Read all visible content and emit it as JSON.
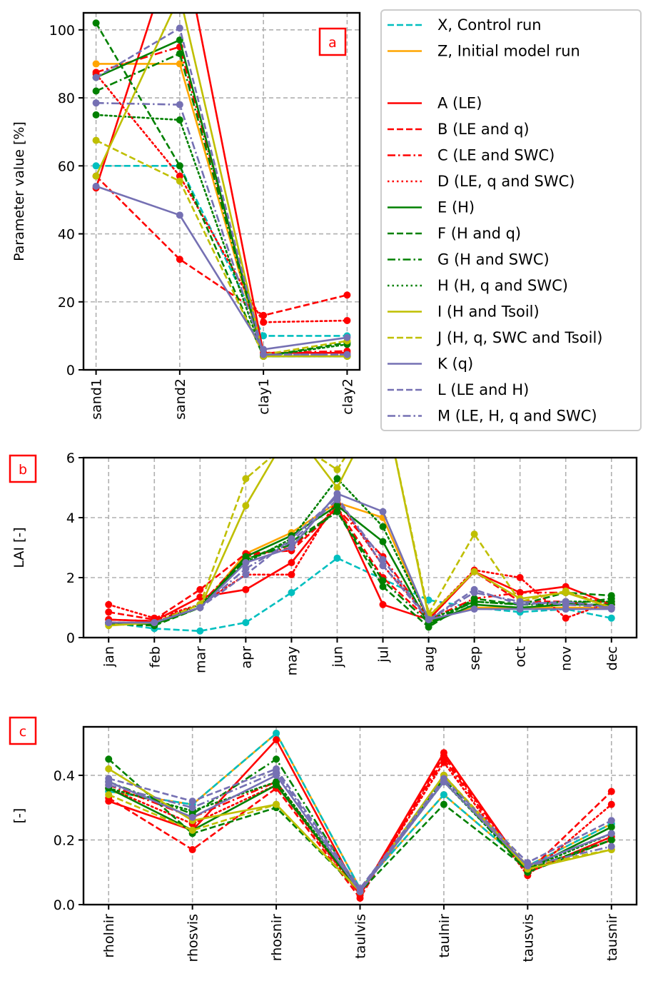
{
  "styles": {
    "X": {
      "color": "#00bfbf",
      "dash": "dashed"
    },
    "Z": {
      "color": "#ffa500",
      "dash": "solid"
    },
    "A": {
      "color": "#ff0000",
      "dash": "solid"
    },
    "B": {
      "color": "#ff0000",
      "dash": "dashed"
    },
    "C": {
      "color": "#ff0000",
      "dash": "dashdot"
    },
    "D": {
      "color": "#ff0000",
      "dash": "dotted"
    },
    "E": {
      "color": "#008000",
      "dash": "solid"
    },
    "F": {
      "color": "#008000",
      "dash": "dashed"
    },
    "G": {
      "color": "#008000",
      "dash": "dashdot"
    },
    "H": {
      "color": "#008000",
      "dash": "dotted"
    },
    "I": {
      "color": "#bfbf00",
      "dash": "solid"
    },
    "J": {
      "color": "#bfbf00",
      "dash": "dashed"
    },
    "K": {
      "color": "#7570b3",
      "dash": "solid"
    },
    "L": {
      "color": "#7570b3",
      "dash": "dashed"
    },
    "M": {
      "color": "#7570b3",
      "dash": "dashdot"
    }
  },
  "legend": {
    "placement": "right of panel a",
    "entries": [
      {
        "key": "X",
        "label": "X, Control run"
      },
      {
        "key": "Z",
        "label": "Z, Initial model run"
      },
      {
        "key": "",
        "label": ""
      },
      {
        "key": "A",
        "label": "A (LE)"
      },
      {
        "key": "B",
        "label": "B (LE and q)"
      },
      {
        "key": "C",
        "label": "C (LE and SWC)"
      },
      {
        "key": "D",
        "label": "D (LE, q and SWC)"
      },
      {
        "key": "E",
        "label": "E (H)"
      },
      {
        "key": "F",
        "label": "F (H and q)"
      },
      {
        "key": "G",
        "label": "G (H and SWC)"
      },
      {
        "key": "H",
        "label": "H (H, q and SWC)"
      },
      {
        "key": "I",
        "label": "I (H and Tsoil)"
      },
      {
        "key": "J",
        "label": "J (H, q, SWC and Tsoil)"
      },
      {
        "key": "K",
        "label": "K (q)"
      },
      {
        "key": "L",
        "label": "L (LE and H)"
      },
      {
        "key": "M",
        "label": "M (LE, H, q and SWC)"
      }
    ]
  },
  "chart_data": [
    {
      "panel_label": "a",
      "type": "line",
      "ylabel": "Parameter value [%]",
      "ylim": [
        0,
        105
      ],
      "yticks": [
        0,
        20,
        40,
        60,
        80,
        100
      ],
      "grid": true,
      "categories": [
        "sand1",
        "sand2",
        "clay1",
        "clay2"
      ],
      "series": [
        {
          "key": "X",
          "values": [
            60,
            60,
            10,
            10
          ]
        },
        {
          "key": "Z",
          "values": [
            90,
            90,
            4,
            4
          ]
        },
        {
          "key": "A",
          "values": [
            53.5,
            130,
            5,
            5
          ]
        },
        {
          "key": "B",
          "values": [
            57,
            32.5,
            16,
            22
          ]
        },
        {
          "key": "C",
          "values": [
            87.5,
            95,
            5,
            5.5
          ]
        },
        {
          "key": "D",
          "values": [
            87,
            57,
            14,
            14.5
          ]
        },
        {
          "key": "E",
          "values": [
            86,
            97,
            4,
            4
          ]
        },
        {
          "key": "F",
          "values": [
            102,
            60,
            4,
            8
          ]
        },
        {
          "key": "G",
          "values": [
            82,
            93,
            4,
            4
          ]
        },
        {
          "key": "H",
          "values": [
            75,
            73.5,
            4,
            7.5
          ]
        },
        {
          "key": "I",
          "values": [
            57,
            110,
            4,
            4
          ]
        },
        {
          "key": "J",
          "values": [
            67.5,
            55.5,
            4.5,
            8.5
          ]
        },
        {
          "key": "K",
          "values": [
            54,
            45.5,
            6,
            9.5
          ]
        },
        {
          "key": "L",
          "values": [
            86,
            100.5,
            4.5,
            4.5
          ]
        },
        {
          "key": "M",
          "values": [
            78.5,
            78,
            4.5,
            4.5
          ]
        }
      ]
    },
    {
      "panel_label": "b",
      "type": "line",
      "ylabel": "LAI [-]",
      "ylim": [
        0,
        6
      ],
      "yticks": [
        0,
        2,
        4,
        6
      ],
      "grid": true,
      "categories": [
        "jan",
        "feb",
        "mar",
        "apr",
        "may",
        "jun",
        "jul",
        "aug",
        "sep",
        "oct",
        "nov",
        "dec"
      ],
      "series": [
        {
          "key": "X",
          "values": [
            0.5,
            0.3,
            0.22,
            0.5,
            1.5,
            2.65,
            1.95,
            1.25,
            1.0,
            0.85,
            0.95,
            0.65
          ]
        },
        {
          "key": "Z",
          "values": [
            0.45,
            0.5,
            1.0,
            2.8,
            3.5,
            4.5,
            4.0,
            0.55,
            1.0,
            1.0,
            1.0,
            1.0
          ]
        },
        {
          "key": "A",
          "values": [
            0.6,
            0.55,
            1.35,
            1.6,
            2.5,
            4.4,
            1.1,
            0.6,
            2.2,
            1.5,
            1.7,
            1.1
          ]
        },
        {
          "key": "B",
          "values": [
            0.85,
            0.6,
            1.6,
            2.8,
            2.9,
            4.3,
            2.0,
            0.6,
            2.2,
            1.2,
            1.2,
            1.0
          ]
        },
        {
          "key": "C",
          "values": [
            0.6,
            0.55,
            1.1,
            2.7,
            3.0,
            4.3,
            2.7,
            0.6,
            1.3,
            1.5,
            1.5,
            1.1
          ]
        },
        {
          "key": "D",
          "values": [
            1.1,
            0.65,
            1.1,
            2.1,
            2.1,
            4.6,
            2.4,
            0.7,
            2.25,
            2.0,
            0.65,
            1.2
          ]
        },
        {
          "key": "E",
          "values": [
            0.5,
            0.45,
            1.0,
            2.7,
            3.4,
            4.4,
            3.2,
            0.45,
            1.1,
            1.0,
            1.1,
            1.1
          ]
        },
        {
          "key": "F",
          "values": [
            0.45,
            0.4,
            1.0,
            2.6,
            3.2,
            4.2,
            1.7,
            0.35,
            1.3,
            1.1,
            1.5,
            1.4
          ]
        },
        {
          "key": "G",
          "values": [
            0.5,
            0.45,
            1.0,
            2.6,
            3.1,
            4.2,
            1.9,
            0.5,
            1.2,
            1.1,
            1.1,
            1.3
          ]
        },
        {
          "key": "H",
          "values": [
            0.5,
            0.5,
            1.1,
            2.5,
            3.3,
            5.3,
            3.7,
            0.6,
            1.2,
            1.1,
            1.2,
            1.2
          ]
        },
        {
          "key": "I",
          "values": [
            0.4,
            0.5,
            1.0,
            4.4,
            7.0,
            5.0,
            8.0,
            0.7,
            2.2,
            1.3,
            1.5,
            1.0
          ]
        },
        {
          "key": "J",
          "values": [
            0.5,
            0.5,
            1.1,
            5.3,
            6.6,
            5.6,
            8.0,
            0.8,
            3.45,
            1.2,
            1.55,
            1.0
          ]
        },
        {
          "key": "K",
          "values": [
            0.5,
            0.5,
            1.0,
            2.5,
            3.0,
            4.8,
            4.2,
            0.6,
            0.95,
            0.95,
            0.95,
            0.95
          ]
        },
        {
          "key": "L",
          "values": [
            0.5,
            0.5,
            1.0,
            2.1,
            3.3,
            4.7,
            2.4,
            0.6,
            1.6,
            1.1,
            1.2,
            1.0
          ]
        },
        {
          "key": "M",
          "values": [
            0.5,
            0.5,
            1.0,
            2.3,
            3.2,
            4.6,
            2.6,
            0.6,
            1.5,
            1.2,
            1.1,
            1.0
          ]
        }
      ]
    },
    {
      "panel_label": "c",
      "type": "line",
      "ylabel": "[-]",
      "ylim": [
        0,
        0.55
      ],
      "yticks": [
        0.0,
        0.2,
        0.4
      ],
      "yticklabels": [
        "0.0",
        "0.2",
        "0.4"
      ],
      "grid": true,
      "categories": [
        "rholnir",
        "rhosvis",
        "rhosnir",
        "taulvis",
        "taulnir",
        "tausvis",
        "tausnir"
      ],
      "series": [
        {
          "key": "Z",
          "values": [
            0.35,
            0.31,
            0.53,
            0.05,
            0.34,
            0.12,
            0.25
          ]
        },
        {
          "key": "X",
          "values": [
            0.35,
            0.31,
            0.53,
            0.05,
            0.34,
            0.12,
            0.25
          ]
        },
        {
          "key": "A",
          "values": [
            0.32,
            0.23,
            0.51,
            0.03,
            0.47,
            0.1,
            0.21
          ]
        },
        {
          "key": "B",
          "values": [
            0.33,
            0.17,
            0.36,
            0.02,
            0.46,
            0.1,
            0.35
          ]
        },
        {
          "key": "C",
          "values": [
            0.37,
            0.27,
            0.38,
            0.03,
            0.45,
            0.1,
            0.2
          ]
        },
        {
          "key": "D",
          "values": [
            0.36,
            0.25,
            0.37,
            0.03,
            0.44,
            0.09,
            0.31
          ]
        },
        {
          "key": "E",
          "values": [
            0.36,
            0.23,
            0.37,
            0.04,
            0.4,
            0.11,
            0.24
          ]
        },
        {
          "key": "F",
          "values": [
            0.45,
            0.22,
            0.3,
            0.04,
            0.31,
            0.11,
            0.2
          ]
        },
        {
          "key": "G",
          "values": [
            0.38,
            0.28,
            0.45,
            0.04,
            0.39,
            0.1,
            0.2
          ]
        },
        {
          "key": "H",
          "values": [
            0.36,
            0.29,
            0.38,
            0.04,
            0.38,
            0.11,
            0.22
          ]
        },
        {
          "key": "I",
          "values": [
            0.42,
            0.26,
            0.31,
            0.04,
            0.4,
            0.11,
            0.17
          ]
        },
        {
          "key": "J",
          "values": [
            0.34,
            0.23,
            0.31,
            0.04,
            0.4,
            0.12,
            0.17
          ]
        },
        {
          "key": "K",
          "values": [
            0.38,
            0.27,
            0.4,
            0.04,
            0.38,
            0.12,
            0.22
          ]
        },
        {
          "key": "L",
          "values": [
            0.39,
            0.32,
            0.42,
            0.05,
            0.39,
            0.13,
            0.26
          ]
        },
        {
          "key": "M",
          "values": [
            0.37,
            0.3,
            0.41,
            0.05,
            0.38,
            0.12,
            0.18
          ]
        }
      ]
    }
  ]
}
